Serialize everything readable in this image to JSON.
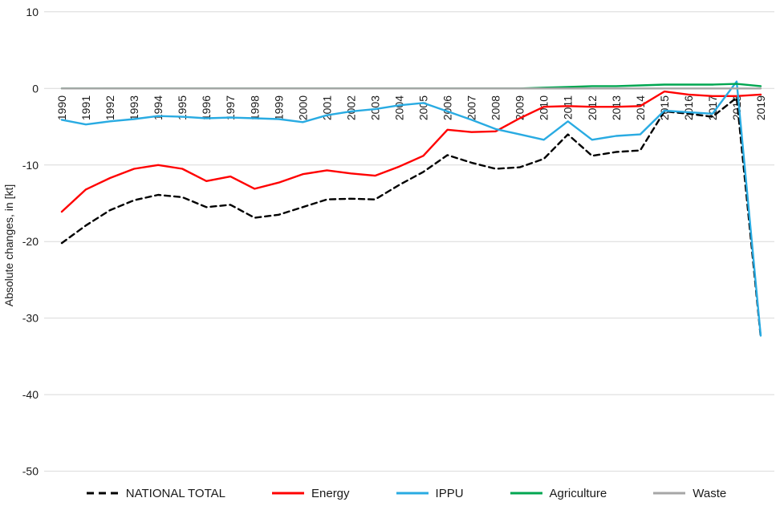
{
  "chart_data": {
    "type": "line",
    "title": "",
    "xlabel": "",
    "ylabel": "Absolute changes, in [kt]",
    "ylim": [
      -50,
      10
    ],
    "yticks": [
      10,
      0,
      -10,
      -20,
      -30,
      -40,
      -50
    ],
    "grid": "horizontal",
    "legend_position": "bottom",
    "categories": [
      "1990",
      "1991",
      "1992",
      "1993",
      "1994",
      "1995",
      "1996",
      "1997",
      "1998",
      "1999",
      "2000",
      "2001",
      "2002",
      "2003",
      "2004",
      "2005",
      "2006",
      "2007",
      "2008",
      "2009",
      "2010",
      "2011",
      "2012",
      "2013",
      "2014",
      "2015",
      "2016",
      "2017",
      "2018",
      "2019"
    ],
    "series": [
      {
        "name": "NATIONAL TOTAL",
        "color": "#000000",
        "line_style": "dashed",
        "values": [
          -20.2,
          -17.9,
          -15.9,
          -14.6,
          -13.9,
          -14.2,
          -15.5,
          -15.2,
          -16.9,
          -16.5,
          -15.5,
          -14.5,
          -14.4,
          -14.5,
          -12.6,
          -10.9,
          -8.7,
          -9.7,
          -10.5,
          -10.3,
          -9.2,
          -6.0,
          -8.8,
          -8.3,
          -8.1,
          -3.0,
          -3.3,
          -3.7,
          -1.2,
          -32.5
        ]
      },
      {
        "name": "Energy",
        "color": "#FF0000",
        "line_style": "solid",
        "values": [
          -16.1,
          -13.2,
          -11.7,
          -10.5,
          -10.0,
          -10.5,
          -12.1,
          -11.5,
          -13.1,
          -12.3,
          -11.2,
          -10.7,
          -11.1,
          -11.4,
          -10.2,
          -8.8,
          -5.4,
          -5.7,
          -5.6,
          -3.9,
          -2.4,
          -2.3,
          -2.4,
          -2.4,
          -2.3,
          -0.4,
          -0.8,
          -1.0,
          -1.0,
          -0.8
        ]
      },
      {
        "name": "IPPU",
        "color": "#29ABE2",
        "line_style": "solid",
        "values": [
          -4.1,
          -4.7,
          -4.3,
          -4.0,
          -3.6,
          -3.7,
          -3.9,
          -3.8,
          -3.9,
          -4.0,
          -4.4,
          -3.5,
          -3.0,
          -2.7,
          -2.2,
          -1.9,
          -3.0,
          -4.1,
          -5.3,
          -6.0,
          -6.7,
          -4.3,
          -6.7,
          -6.2,
          -6.0,
          -2.9,
          -3.1,
          -3.3,
          0.9,
          -32.3
        ]
      },
      {
        "name": "Agriculture",
        "color": "#00A651",
        "line_style": "solid",
        "values": [
          0,
          0,
          0,
          0,
          0,
          0,
          0,
          0,
          0,
          0,
          0,
          0,
          0,
          0,
          0,
          0,
          0,
          0,
          0,
          0,
          0.1,
          0.2,
          0.3,
          0.3,
          0.4,
          0.5,
          0.5,
          0.5,
          0.6,
          0.3
        ]
      },
      {
        "name": "Waste",
        "color": "#A6A6A6",
        "line_style": "solid",
        "values": [
          0,
          0,
          0,
          0,
          0,
          0,
          0,
          0,
          0,
          0,
          0,
          0,
          0,
          0,
          0,
          0,
          0,
          0,
          0,
          0,
          0,
          0,
          0,
          0,
          0,
          0,
          0,
          0,
          0,
          0
        ]
      }
    ]
  },
  "colors": {
    "background": "#FFFFFF",
    "gridline": "#D9D9D9",
    "tick_label": "#1A1A1A"
  }
}
